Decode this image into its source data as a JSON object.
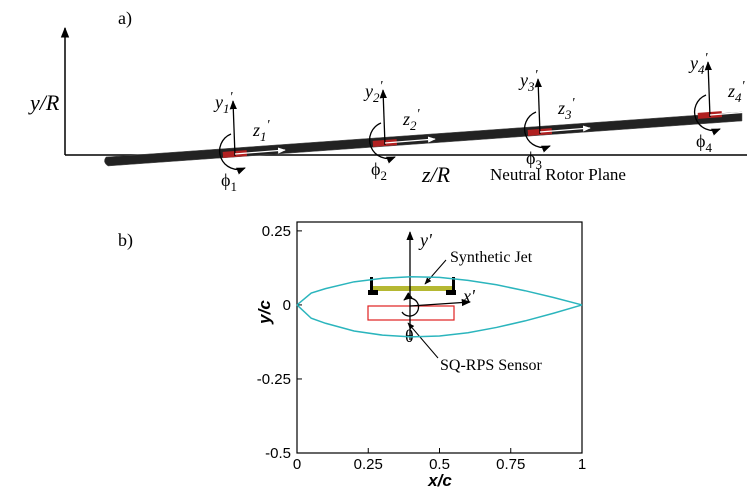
{
  "panel_a": {
    "label": "a)",
    "y_axis_label": "y/R",
    "x_axis_label": "z/R",
    "plane_label": "Neutral Rotor Plane",
    "stations": [
      {
        "y": "y",
        "z": "z",
        "angle": "ϕ",
        "index": "1",
        "prime": "'"
      },
      {
        "y": "y",
        "z": "z",
        "angle": "ϕ",
        "index": "2",
        "prime": "'"
      },
      {
        "y": "y",
        "z": "z",
        "angle": "ϕ",
        "index": "3",
        "prime": "'"
      },
      {
        "y": "y",
        "z": "z",
        "angle": "ϕ",
        "index": "4",
        "prime": "'"
      }
    ]
  },
  "chart_data": {
    "type": "line",
    "label": "b)",
    "xlabel": "x/c",
    "ylabel": "y/c",
    "x": [
      0,
      0.05,
      0.1,
      0.2,
      0.3,
      0.4,
      0.5,
      0.6,
      0.7,
      0.8,
      0.9,
      1
    ],
    "series": [
      {
        "color": "#2bb5bd",
        "values": [
          0,
          0.04,
          0.055,
          0.078,
          0.09,
          0.095,
          0.093,
          0.083,
          0.068,
          0.048,
          0.025,
          0
        ]
      },
      {
        "color": "#2bb5bd",
        "values": [
          0,
          -0.045,
          -0.062,
          -0.088,
          -0.102,
          -0.108,
          -0.105,
          -0.094,
          -0.076,
          -0.054,
          -0.028,
          0
        ]
      }
    ],
    "xlim": [
      0,
      1
    ],
    "ylim": [
      -0.5,
      0.28
    ],
    "xticks": [
      0,
      0.25,
      0.5,
      0.75,
      1
    ],
    "yticks": [
      -0.5,
      -0.25,
      0,
      0.25
    ],
    "annotations": {
      "y_prime": "y'",
      "x_prime": "x'",
      "theta": "θ",
      "jet": "Synthetic Jet",
      "sensor": "SQ-RPS Sensor"
    }
  }
}
